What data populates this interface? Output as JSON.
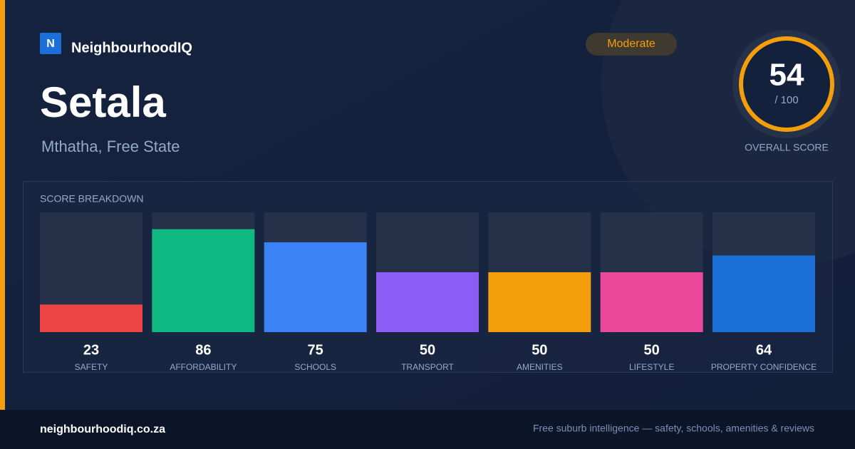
{
  "header": {
    "logo_letter": "N",
    "brand": "NeighbourhoodIQ",
    "badge": "Moderate"
  },
  "place": {
    "name": "Setala",
    "location": "Mthatha, Free State"
  },
  "overall": {
    "score": 54,
    "out_of": "/ 100",
    "label": "OVERALL SCORE"
  },
  "chart_data": {
    "type": "bar",
    "title": "SCORE BREAKDOWN",
    "categories": [
      "SAFETY",
      "AFFORDABILITY",
      "SCHOOLS",
      "TRANSPORT",
      "AMENITIES",
      "LIFESTYLE",
      "PROPERTY CONFIDENCE"
    ],
    "values": [
      23,
      86,
      75,
      50,
      50,
      50,
      64
    ],
    "colors": [
      "#ef4444",
      "#10b981",
      "#3b82f6",
      "#8b5cf6",
      "#f59e0b",
      "#ec4899",
      "#1d6fd8"
    ],
    "ylim": [
      0,
      100
    ]
  },
  "footer": {
    "site": "neighbourhoodiq.co.za",
    "tagline": "Free suburb intelligence — safety, schools, amenities & reviews"
  }
}
